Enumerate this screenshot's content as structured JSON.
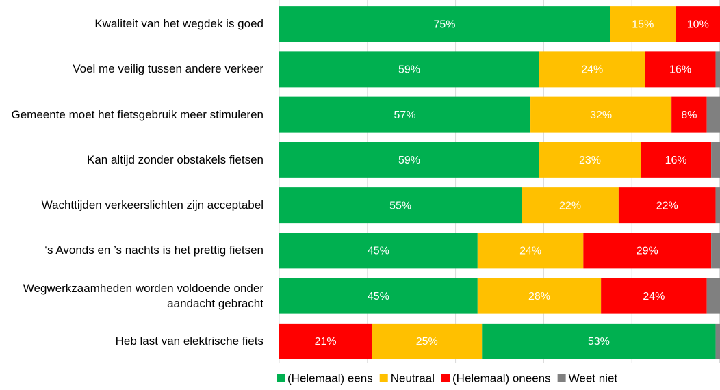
{
  "chart_data": {
    "type": "stacked-bar-horizontal",
    "categories": [
      "Kwaliteit van het wegdek is goed",
      "Voel me veilig tussen andere verkeer",
      "Gemeente moet het fietsgebruik meer stimuleren",
      "Kan altijd zonder obstakels fietsen",
      "Wachttijden verkeerslichten zijn acceptabel",
      "‘s Avonds en ’s nachts is het prettig fietsen",
      "Wegwerkzaamheden worden voldoende onder aandacht gebracht",
      "Heb last van elektrische fiets"
    ],
    "series": [
      {
        "name": "(Helemaal) eens",
        "color": "#00b050",
        "values": [
          75,
          59,
          57,
          59,
          55,
          45,
          45,
          53
        ],
        "value_labels": [
          "75%",
          "59%",
          "57%",
          "59%",
          "55%",
          "45%",
          "45%",
          "53%"
        ]
      },
      {
        "name": "Neutraal",
        "color": "#ffc000",
        "values": [
          15,
          24,
          32,
          23,
          22,
          24,
          28,
          25
        ],
        "value_labels": [
          "15%",
          "24%",
          "32%",
          "23%",
          "22%",
          "24%",
          "28%",
          "25%"
        ]
      },
      {
        "name": "(Helemaal) oneens",
        "color": "#ff0000",
        "values": [
          10,
          16,
          8,
          16,
          22,
          29,
          24,
          21
        ],
        "value_labels": [
          "10%",
          "16%",
          "8%",
          "16%",
          "22%",
          "29%",
          "24%",
          "21%"
        ]
      },
      {
        "name": "Weet niet",
        "color": "#808080",
        "values": [
          0,
          1,
          3,
          2,
          1,
          2,
          3,
          1
        ]
      }
    ],
    "stack_order": [
      [
        0,
        1,
        2,
        3
      ],
      [
        0,
        1,
        2,
        3
      ],
      [
        0,
        1,
        2,
        3
      ],
      [
        0,
        1,
        2,
        3
      ],
      [
        0,
        1,
        2,
        3
      ],
      [
        0,
        1,
        2,
        3
      ],
      [
        0,
        1,
        2,
        3
      ],
      [
        2,
        1,
        0,
        3
      ]
    ],
    "xlim": [
      0,
      100
    ],
    "xticks": [
      0,
      20,
      40,
      60,
      80,
      100
    ],
    "grid": true,
    "legend": "bottom"
  }
}
